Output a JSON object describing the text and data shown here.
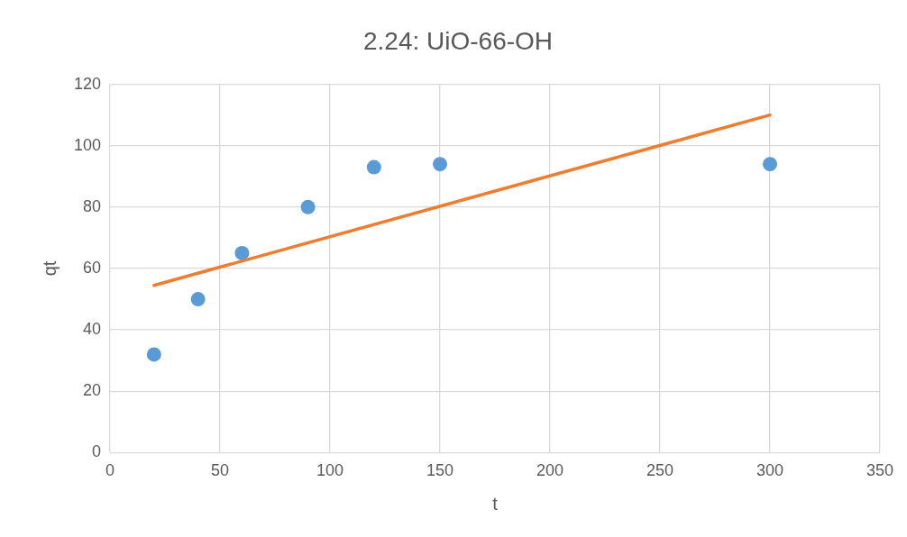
{
  "chart_data": {
    "type": "scatter",
    "title": "2.24: UiO-66-OH",
    "xlabel": "t",
    "ylabel": "qt",
    "xlim": [
      0,
      350
    ],
    "xticks": [
      0,
      50,
      100,
      150,
      200,
      250,
      300,
      350
    ],
    "ylim": [
      0,
      120
    ],
    "yticks": [
      0,
      20,
      40,
      60,
      80,
      100,
      120
    ],
    "grid": true,
    "series": [
      {
        "marker": "circle",
        "color": "#5b9bd5",
        "x": [
          20,
          40,
          60,
          90,
          120,
          150,
          300
        ],
        "values": [
          32,
          50,
          65,
          80,
          93,
          94,
          94
        ]
      },
      {
        "type": "line",
        "marker": "none",
        "color": "#ed7d31",
        "x": [
          20,
          300
        ],
        "values": [
          54.5,
          110
        ]
      }
    ]
  }
}
